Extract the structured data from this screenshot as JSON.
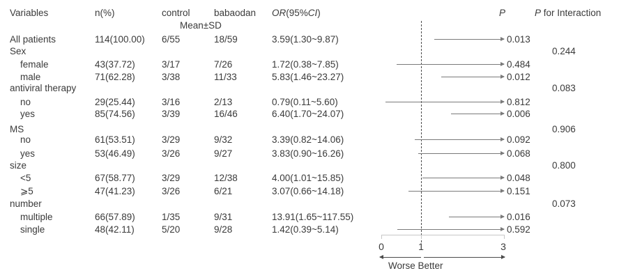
{
  "header": {
    "variables": "Variables",
    "n": "n(%)",
    "control": "control",
    "babaodan": "babaodan",
    "mean_sd": "Mean±SD",
    "or_parts": [
      "OR",
      "(95%",
      "CI",
      ")"
    ],
    "p": "P",
    "p_interaction_parts": [
      "P",
      " for Interaction"
    ]
  },
  "rows": [
    {
      "label": "All patients",
      "n": "114(100.00)",
      "control": "6/55",
      "babaodan": "18/59",
      "or_ci": "3.59(1.30~9.87)",
      "or": 3.59,
      "ci_low": 1.3,
      "ci_high": 9.87,
      "p": "0.013"
    },
    {
      "label": "Sex",
      "p_interaction": "0.244"
    },
    {
      "label": "female",
      "n": "43(37.72)",
      "control": "3/17",
      "babaodan": "7/26",
      "or_ci": "1.72(0.38~7.85)",
      "or": 1.72,
      "ci_low": 0.38,
      "ci_high": 7.85,
      "p": "0.484"
    },
    {
      "label": "male",
      "n": "71(62.28)",
      "control": "3/38",
      "babaodan": "11/33",
      "or_ci": "5.83(1.46~23.27)",
      "or": 5.83,
      "ci_low": 1.46,
      "ci_high": 23.27,
      "p": "0.012"
    },
    {
      "label": "antiviral therapy",
      "p_interaction": "0.083"
    },
    {
      "label": "no",
      "n": "29(25.44)",
      "control": "3/16",
      "babaodan": "2/13",
      "or_ci": "0.79(0.11~5.60)",
      "or": 0.79,
      "ci_low": 0.11,
      "ci_high": 5.6,
      "p": "0.812"
    },
    {
      "label": "yes",
      "n": "85(74.56)",
      "control": "3/39",
      "babaodan": "16/46",
      "or_ci": "6.40(1.70~24.07)",
      "or": 6.4,
      "ci_low": 1.7,
      "ci_high": 24.07,
      "p": "0.006"
    },
    {
      "label": "MS",
      "p_interaction": "0.906"
    },
    {
      "label": "no",
      "n": "61(53.51)",
      "control": "3/29",
      "babaodan": "9/32",
      "or_ci": "3.39(0.82~14.06)",
      "or": 3.39,
      "ci_low": 0.82,
      "ci_high": 14.06,
      "p": "0.092"
    },
    {
      "label": "yes",
      "n": "53(46.49)",
      "control": "3/26",
      "babaodan": "9/27",
      "or_ci": "3.83(0.90~16.26)",
      "or": 3.83,
      "ci_low": 0.9,
      "ci_high": 16.26,
      "p": "0.068"
    },
    {
      "label": "size",
      "p_interaction": "0.800"
    },
    {
      "label": "<5",
      "n": "67(58.77)",
      "control": "3/29",
      "babaodan": "12/38",
      "or_ci": "4.00(1.01~15.85)",
      "or": 4.0,
      "ci_low": 1.01,
      "ci_high": 15.85,
      "p": "0.048"
    },
    {
      "label": "⩾5",
      "n": "47(41.23)",
      "control": "3/26",
      "babaodan": "6/21",
      "or_ci": "3.07(0.66~14.18)",
      "or": 3.07,
      "ci_low": 0.66,
      "ci_high": 14.18,
      "p": "0.151"
    },
    {
      "label": "number",
      "p_interaction": "0.073"
    },
    {
      "label": "multiple",
      "n": "66(57.89)",
      "control": "1/35",
      "babaodan": "9/31",
      "or_ci": "13.91(1.65~117.55)",
      "or": 13.91,
      "ci_low": 1.65,
      "ci_high": 117.55,
      "p": "0.016"
    },
    {
      "label": "single",
      "n": "48(42.11)",
      "control": "5/20",
      "babaodan": "9/28",
      "or_ci": "1.42(0.39~5.14)",
      "or": 1.42,
      "ci_low": 0.39,
      "ci_high": 5.14,
      "p": "0.592"
    }
  ],
  "axis": {
    "tick0": "0",
    "tick1": "1",
    "tick3": "3",
    "direction_label": "Worse Better"
  },
  "chart_data": {
    "type": "scatter",
    "subtype": "forest-plot-odds-ratio",
    "title": "",
    "xlabel": "",
    "ylabel": "",
    "x_axis": {
      "ticks": [
        0,
        1,
        3
      ],
      "xlim": [
        0,
        3
      ],
      "reference_line": 1,
      "clip_arrow_above": 3,
      "left_label": "Worse",
      "right_label": "Better"
    },
    "series": [
      {
        "name": "All patients",
        "or": 3.59,
        "ci": [
          1.3,
          9.87
        ],
        "p": 0.013
      },
      {
        "name": "Sex: female",
        "or": 1.72,
        "ci": [
          0.38,
          7.85
        ],
        "p": 0.484
      },
      {
        "name": "Sex: male",
        "or": 5.83,
        "ci": [
          1.46,
          23.27
        ],
        "p": 0.012
      },
      {
        "name": "antiviral therapy: no",
        "or": 0.79,
        "ci": [
          0.11,
          5.6
        ],
        "p": 0.812
      },
      {
        "name": "antiviral therapy: yes",
        "or": 6.4,
        "ci": [
          1.7,
          24.07
        ],
        "p": 0.006
      },
      {
        "name": "MS: no",
        "or": 3.39,
        "ci": [
          0.82,
          14.06
        ],
        "p": 0.092
      },
      {
        "name": "MS: yes",
        "or": 3.83,
        "ci": [
          0.9,
          16.26
        ],
        "p": 0.068
      },
      {
        "name": "size: <5",
        "or": 4.0,
        "ci": [
          1.01,
          15.85
        ],
        "p": 0.048
      },
      {
        "name": "size: ⩾5",
        "or": 3.07,
        "ci": [
          0.66,
          14.18
        ],
        "p": 0.151
      },
      {
        "name": "number: multiple",
        "or": 13.91,
        "ci": [
          1.65,
          117.55
        ],
        "p": 0.016
      },
      {
        "name": "number: single",
        "or": 1.42,
        "ci": [
          0.39,
          5.14
        ],
        "p": 0.592
      }
    ],
    "p_for_interaction": {
      "Sex": 0.244,
      "antiviral therapy": 0.083,
      "MS": 0.906,
      "size": 0.8,
      "number": 0.073
    },
    "colors": {
      "text": "#3a3a3a",
      "ci_line": "#7a7a7a",
      "reference_line": "#4a4a4a",
      "axis_bracket": "#c6c6c6",
      "background": "#ffffff"
    }
  }
}
